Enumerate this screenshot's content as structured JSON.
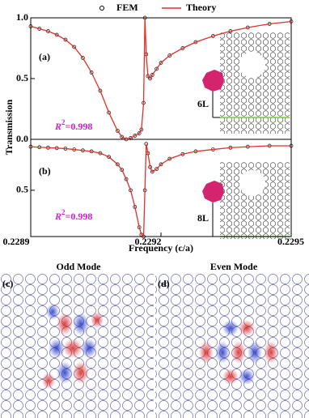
{
  "chart_data": [
    {
      "type": "line",
      "panel_label": "(a)",
      "ylabel": "Transmission",
      "r2": {
        "symbol": "R",
        "power": "2",
        "value": "=0.998"
      },
      "inset_label": "6L",
      "xlim": [
        0.2289,
        0.2295
      ],
      "ylim": [
        0,
        1
      ],
      "yticks": [
        {
          "value": 0,
          "label": "0.0"
        },
        {
          "value": 0.5,
          "label": "0.5"
        },
        {
          "value": 1,
          "label": "1.0"
        }
      ],
      "x": [
        0.2289,
        0.22892,
        0.22894,
        0.22896,
        0.22898,
        0.229,
        0.22902,
        0.22904,
        0.22906,
        0.22908,
        0.2291,
        0.22911,
        0.22912,
        0.22913,
        0.22914,
        0.22915,
        0.229155,
        0.22916,
        0.229163,
        0.229166,
        0.22917,
        0.229175,
        0.22918,
        0.22919,
        0.2292,
        0.22922,
        0.22925,
        0.22928,
        0.22932,
        0.22936,
        0.2294,
        0.22945,
        0.2295
      ],
      "series": [
        {
          "name": "FEM",
          "marker": "circle",
          "color": "#000000",
          "values": [
            0.93,
            0.91,
            0.89,
            0.86,
            0.82,
            0.76,
            0.67,
            0.55,
            0.4,
            0.22,
            0.07,
            0.02,
            0.0,
            0.01,
            0.03,
            0.05,
            0.08,
            0.3,
            1.0,
            0.7,
            0.52,
            0.5,
            0.53,
            0.58,
            0.63,
            0.69,
            0.75,
            0.8,
            0.85,
            0.89,
            0.92,
            0.95,
            0.97
          ]
        },
        {
          "name": "Theory",
          "marker": "line",
          "color": "#e0302a",
          "values": [
            0.93,
            0.91,
            0.89,
            0.86,
            0.82,
            0.76,
            0.67,
            0.55,
            0.4,
            0.22,
            0.07,
            0.02,
            0.0,
            0.01,
            0.03,
            0.05,
            0.08,
            0.3,
            1.0,
            0.7,
            0.52,
            0.5,
            0.53,
            0.58,
            0.63,
            0.69,
            0.75,
            0.8,
            0.85,
            0.89,
            0.92,
            0.95,
            0.97
          ]
        }
      ]
    },
    {
      "type": "line",
      "panel_label": "(b)",
      "xlabel": "Frequency (c/a)",
      "r2": {
        "symbol": "R",
        "power": "2",
        "value": "=0.998"
      },
      "inset_label": "8L",
      "xlim": [
        0.2289,
        0.2295
      ],
      "ylim": [
        0,
        1.05
      ],
      "xticks": [
        0.2289,
        0.2292,
        0.2295
      ],
      "yticks": [
        {
          "value": 0.5,
          "label": "0.5"
        }
      ],
      "x": [
        0.2289,
        0.22892,
        0.22894,
        0.22896,
        0.22898,
        0.229,
        0.22902,
        0.22904,
        0.22906,
        0.22908,
        0.2291,
        0.22911,
        0.22912,
        0.22913,
        0.22914,
        0.22915,
        0.229155,
        0.22916,
        0.229163,
        0.229166,
        0.22917,
        0.229175,
        0.22918,
        0.22919,
        0.2292,
        0.22922,
        0.22925,
        0.22928,
        0.22932,
        0.22936,
        0.2294,
        0.22945,
        0.2295
      ],
      "series": [
        {
          "marker": "circle",
          "color": "#000000",
          "values": [
            0.97,
            0.965,
            0.96,
            0.955,
            0.95,
            0.94,
            0.93,
            0.92,
            0.9,
            0.86,
            0.78,
            0.72,
            0.62,
            0.5,
            0.32,
            0.1,
            0.02,
            0.0,
            0.5,
            1.0,
            0.9,
            0.75,
            0.7,
            0.73,
            0.78,
            0.84,
            0.89,
            0.92,
            0.94,
            0.96,
            0.97,
            0.98,
            0.98
          ]
        },
        {
          "marker": "line",
          "color": "#e0302a",
          "values": [
            0.97,
            0.965,
            0.96,
            0.955,
            0.95,
            0.94,
            0.93,
            0.92,
            0.9,
            0.86,
            0.78,
            0.72,
            0.62,
            0.5,
            0.32,
            0.1,
            0.02,
            0.0,
            0.5,
            1.0,
            0.9,
            0.75,
            0.7,
            0.73,
            0.78,
            0.84,
            0.89,
            0.92,
            0.94,
            0.96,
            0.97,
            0.98,
            0.98
          ]
        }
      ]
    }
  ],
  "modes": [
    {
      "label": "(c)",
      "title": "Odd Mode"
    },
    {
      "label": "(d)",
      "title": "Even Mode"
    }
  ]
}
